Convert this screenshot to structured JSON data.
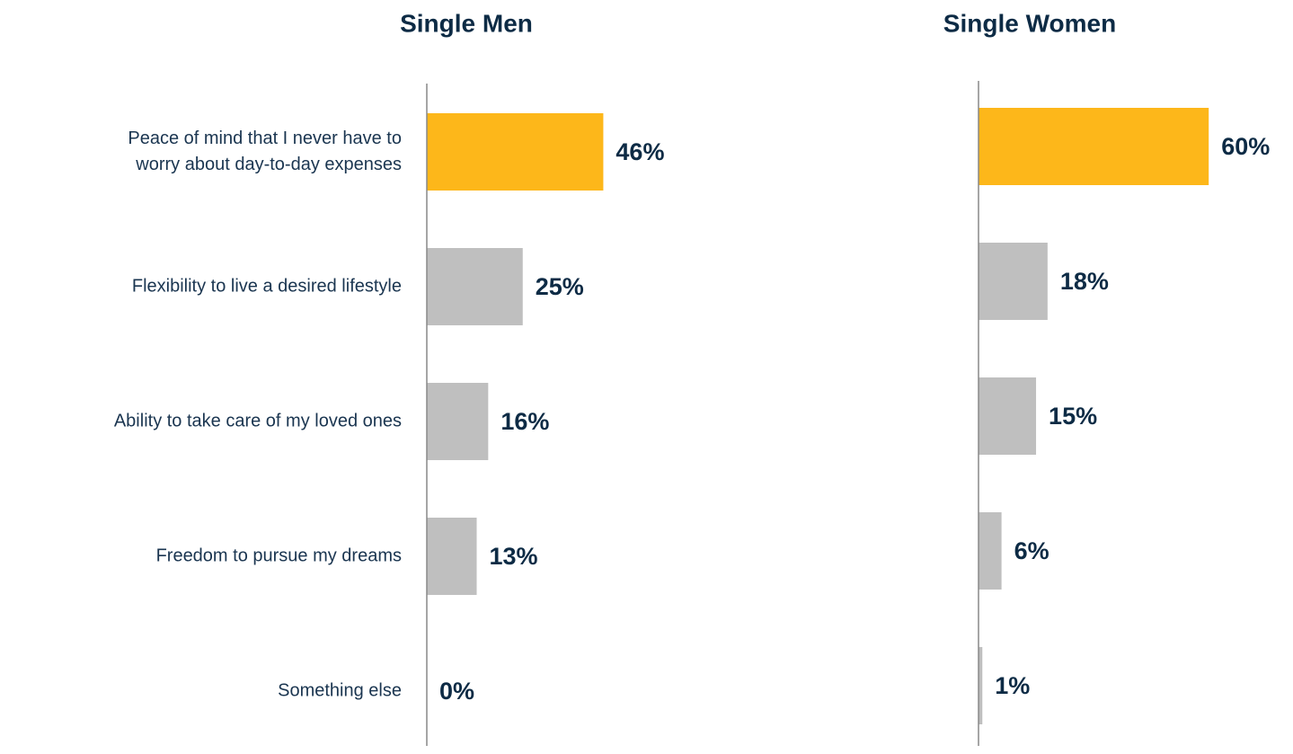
{
  "chart_data": [
    {
      "type": "barh",
      "title": "Single Men",
      "categories": [
        "Peace of mind that I never have to\nworry about day-to-day expenses",
        "Flexibility to live a desired lifestyle",
        "Ability to take care of my loved ones",
        "Freedom to pursue my dreams",
        "Something else"
      ],
      "values": [
        46,
        25,
        16,
        13,
        0
      ],
      "value_labels": [
        "46%",
        "25%",
        "16%",
        "13%",
        "0%"
      ],
      "colors": [
        "#FDB71A",
        "#BFBFBF",
        "#BFBFBF",
        "#BFBFBF",
        "#BFBFBF"
      ],
      "xlim": [
        0,
        100
      ]
    },
    {
      "type": "barh",
      "title": "Single Women",
      "values": [
        60,
        18,
        15,
        6,
        1
      ],
      "value_labels": [
        "60%",
        "18%",
        "15%",
        "6%",
        "1%"
      ],
      "colors": [
        "#FDB71A",
        "#BFBFBF",
        "#BFBFBF",
        "#BFBFBF",
        "#BFBFBF"
      ],
      "xlim": [
        0,
        100
      ]
    }
  ]
}
